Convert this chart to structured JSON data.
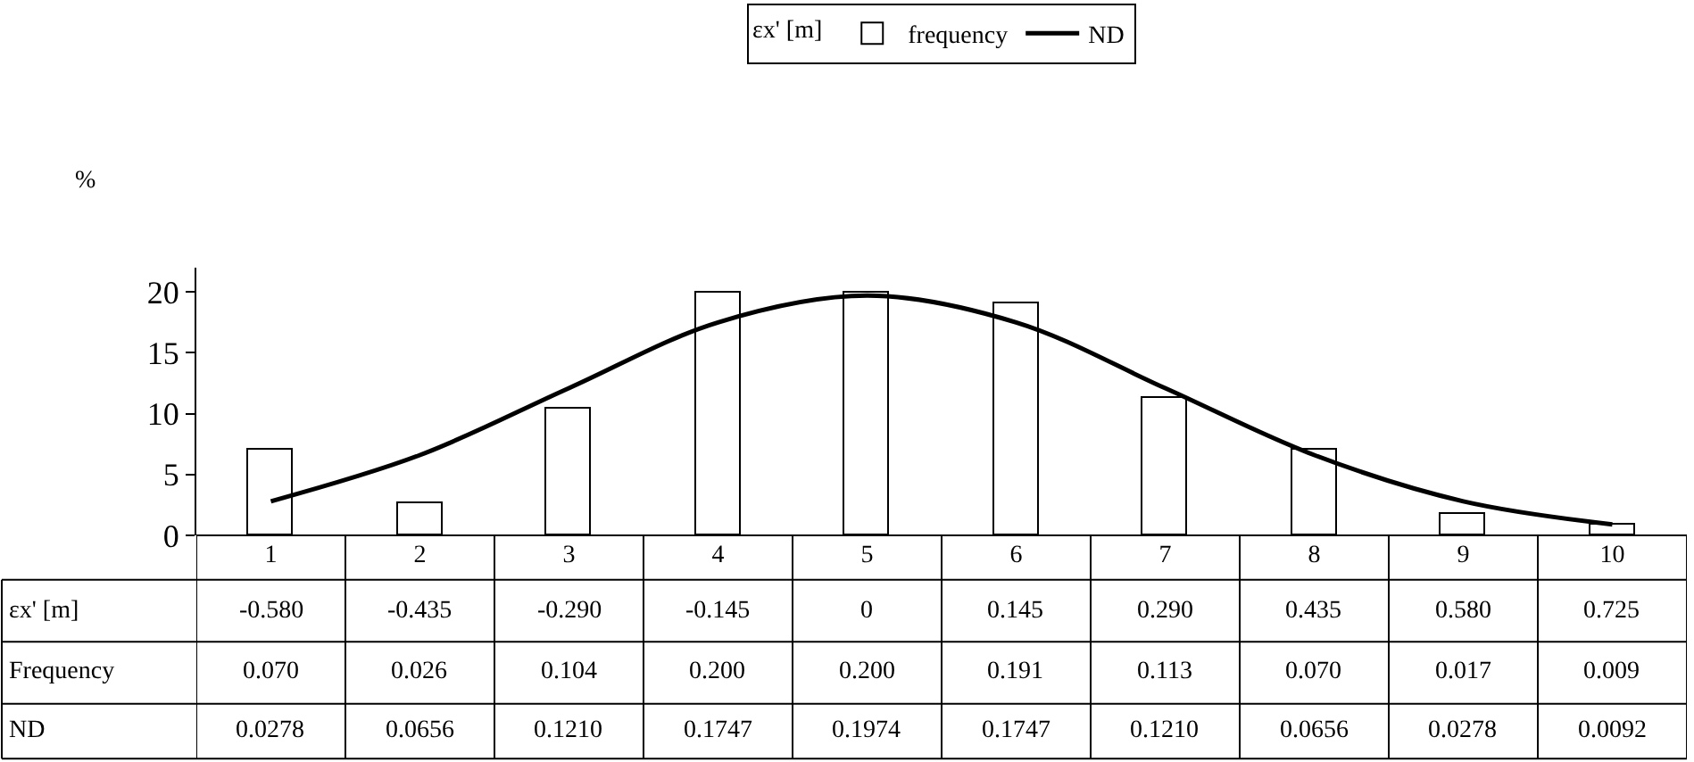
{
  "chart_data": {
    "type": "bar",
    "ylabel": "%",
    "legend_title": "εx' [m]",
    "categories": [
      "1",
      "2",
      "3",
      "4",
      "5",
      "6",
      "7",
      "8",
      "9",
      "10"
    ],
    "series": [
      {
        "name": "frequency",
        "color": "#ffffff",
        "values": [
          7.0,
          2.6,
          10.4,
          20.0,
          20.0,
          19.1,
          11.3,
          7.0,
          1.7,
          0.9
        ]
      },
      {
        "name": "ND",
        "type": "line",
        "color": "#000000",
        "values": [
          2.8,
          6.6,
          12.1,
          17.5,
          19.7,
          17.5,
          12.1,
          6.6,
          2.8,
          0.9
        ]
      }
    ],
    "annotations": [
      "Frequency",
      "-0.580",
      "-0.435",
      "-0.290",
      "-0.145",
      "0",
      "0.145",
      "0.290",
      "0.435",
      "0.580",
      "0.725",
      "0.070",
      "0.026",
      "0.104",
      "0.200",
      "0.200",
      "0.191",
      "0.113",
      "0.070",
      "0.017",
      "0.009",
      "0.0278",
      "0.0656",
      "0.1210",
      "0.1747",
      "0.1974",
      "0.1747",
      "0.1210",
      "0.0656",
      "0.0278",
      "0.0092"
    ],
    "ylim": [
      0,
      22
    ],
    "yticks": [
      0,
      5,
      10,
      15,
      20
    ],
    "legend": "top",
    "marker": "none",
    "line_style": "solid"
  }
}
